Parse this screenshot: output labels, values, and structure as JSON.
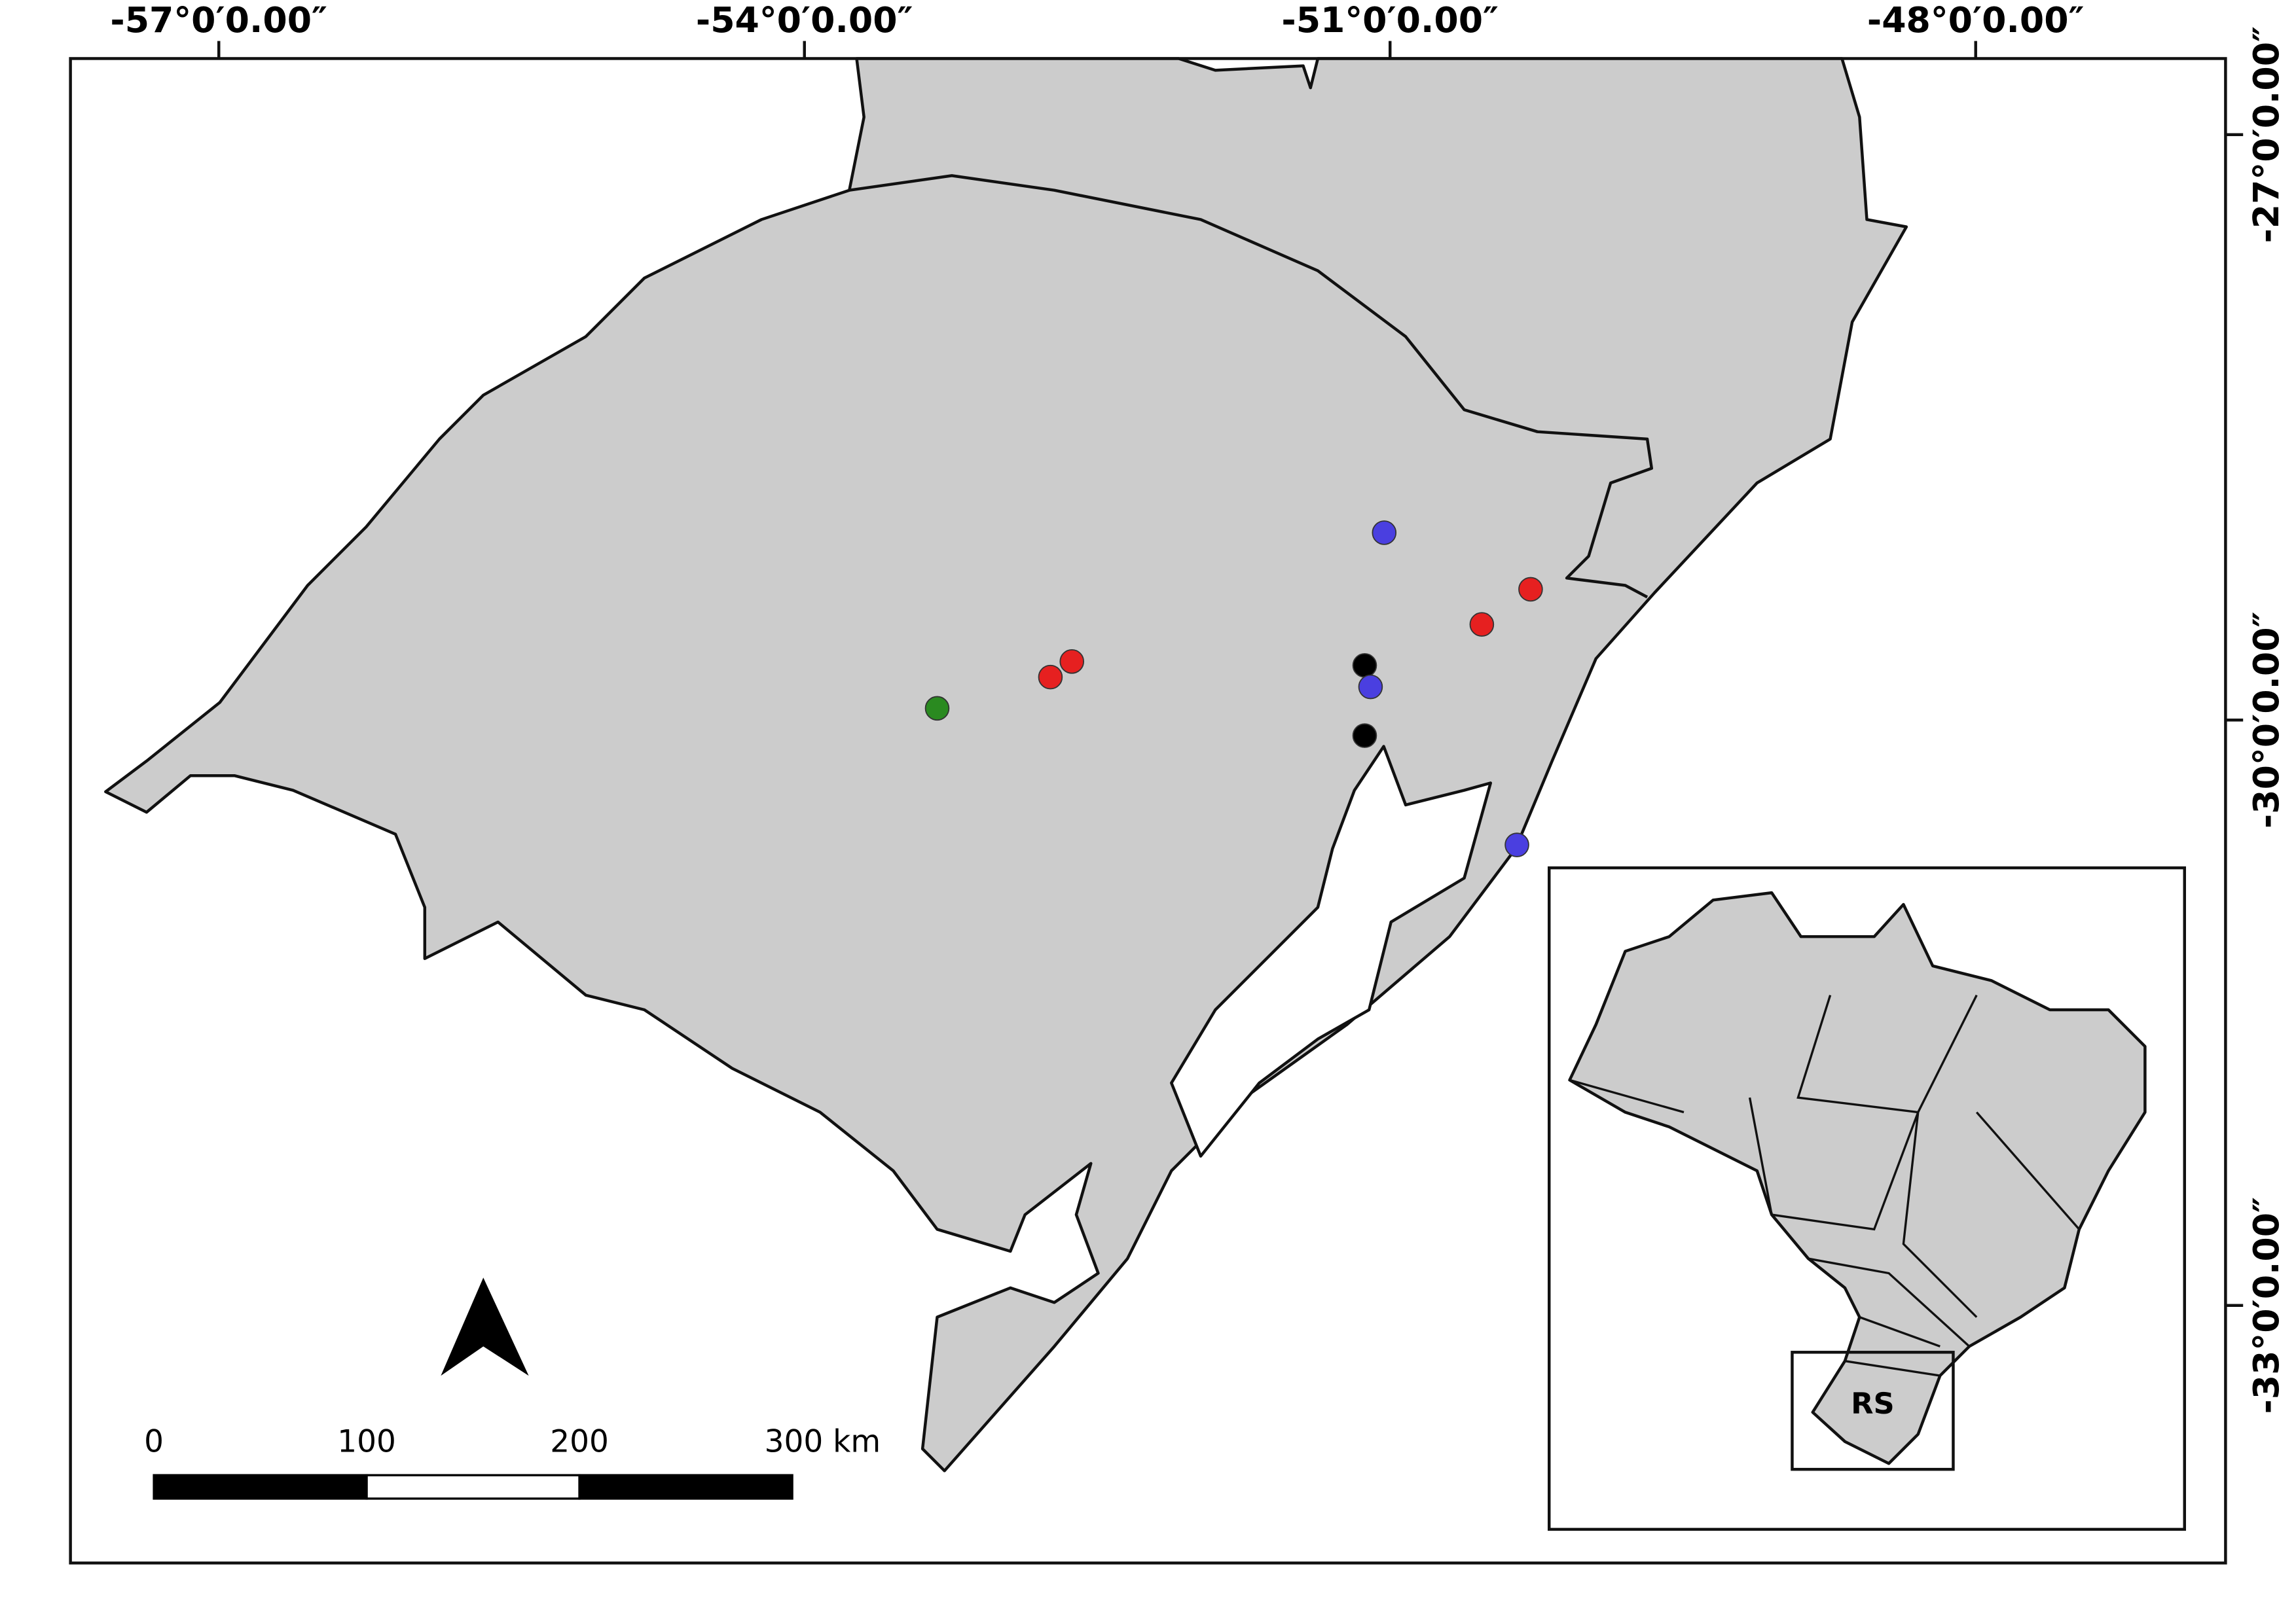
{
  "map": {
    "lon_labels": [
      {
        "value": -57,
        "label": "-57°0′0.00″"
      },
      {
        "value": -54,
        "label": "-54°0′0.00″"
      },
      {
        "value": -51,
        "label": "-51°0′0.00″"
      },
      {
        "value": -48,
        "label": "-48°0′0.00″"
      }
    ],
    "lat_labels": [
      {
        "value": -27,
        "label": "-27°0′0.00″"
      },
      {
        "value": -30,
        "label": "-30°0′0.00″"
      },
      {
        "value": -33,
        "label": "-33°0′0.00″"
      }
    ],
    "xlim": [
      -57.76,
      -46.72
    ],
    "ylim": [
      -26.61,
      -34.32
    ],
    "points": [
      {
        "lon": -51.03,
        "lat": -29.04,
        "color": "#4a3fe0"
      },
      {
        "lon": -50.28,
        "lat": -29.33,
        "color": "#e62020"
      },
      {
        "lon": -50.53,
        "lat": -29.51,
        "color": "#e62020"
      },
      {
        "lon": -51.13,
        "lat": -29.72,
        "color": "#000000"
      },
      {
        "lon": -51.1,
        "lat": -29.83,
        "color": "#4a3fe0"
      },
      {
        "lon": -51.13,
        "lat": -30.08,
        "color": "#000000"
      },
      {
        "lon": -50.35,
        "lat": -30.64,
        "color": "#4a3fe0"
      },
      {
        "lon": -52.63,
        "lat": -29.7,
        "color": "#e62020"
      },
      {
        "lon": -52.74,
        "lat": -29.78,
        "color": "#e62020"
      },
      {
        "lon": -53.32,
        "lat": -29.94,
        "color": "#2a8a20"
      }
    ],
    "scale_bar": [
      "0",
      "100",
      "200",
      "300 km"
    ],
    "inset_label": "RS"
  }
}
